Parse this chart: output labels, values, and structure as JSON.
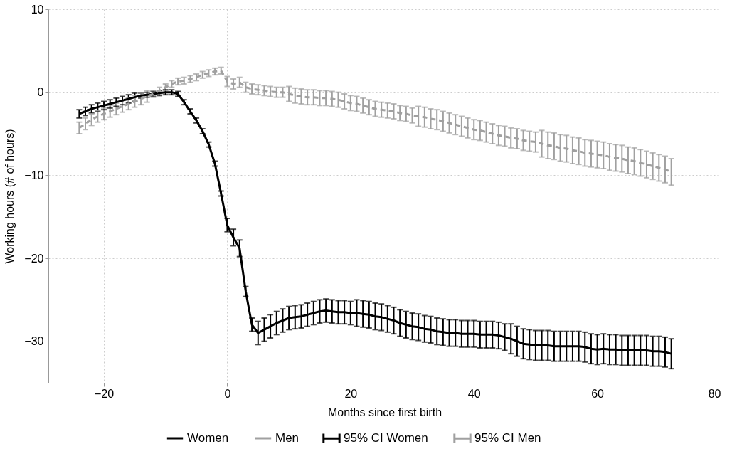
{
  "chart_data": {
    "type": "line",
    "xlabel": "Months since first birth",
    "ylabel": "Working hours (# of hours)",
    "xlim": [
      -29,
      80
    ],
    "xticks": [
      -20,
      0,
      20,
      40,
      60,
      80
    ],
    "ylim": [
      -35,
      10
    ],
    "yticks": [
      -30,
      -20,
      -10,
      0,
      10
    ],
    "grid": true,
    "legend": "bottom",
    "marker": "none",
    "annotations": [
      "95% CI Women",
      "95% CI Men"
    ],
    "x": [
      -24,
      -23,
      -22,
      -21,
      -20,
      -19,
      -18,
      -17,
      -16,
      -15,
      -14,
      -13,
      -12,
      -11,
      -10,
      -9,
      -8,
      -7,
      -6,
      -5,
      -4,
      -3,
      -2,
      -1,
      0,
      1,
      2,
      3,
      4,
      5,
      6,
      7,
      8,
      9,
      10,
      11,
      12,
      13,
      14,
      15,
      16,
      17,
      18,
      19,
      20,
      21,
      22,
      23,
      24,
      25,
      26,
      27,
      28,
      29,
      30,
      31,
      32,
      33,
      34,
      35,
      36,
      37,
      38,
      39,
      40,
      41,
      42,
      43,
      44,
      45,
      46,
      47,
      48,
      49,
      50,
      51,
      52,
      53,
      54,
      55,
      56,
      57,
      58,
      59,
      60,
      61,
      62,
      63,
      64,
      65,
      66,
      67,
      68,
      69,
      70,
      71,
      72
    ],
    "series": [
      {
        "name": "Women",
        "color": "#000000",
        "line_style": "solid",
        "values": [
          -2.6,
          -2.3,
          -2.0,
          -1.8,
          -1.6,
          -1.4,
          -1.2,
          -1.0,
          -0.8,
          -0.6,
          -0.4,
          -0.3,
          -0.2,
          -0.1,
          0.0,
          0.0,
          -0.2,
          -1.2,
          -2.3,
          -3.4,
          -4.7,
          -6.3,
          -8.6,
          -12.2,
          -16.0,
          -17.5,
          -18.8,
          -24.0,
          -28.0,
          -29.0,
          -28.6,
          -28.2,
          -27.8,
          -27.5,
          -27.2,
          -27.1,
          -27.0,
          -26.8,
          -26.6,
          -26.4,
          -26.3,
          -26.4,
          -26.5,
          -26.5,
          -26.6,
          -26.6,
          -26.7,
          -26.8,
          -27.0,
          -27.1,
          -27.3,
          -27.5,
          -27.8,
          -28.0,
          -28.2,
          -28.3,
          -28.5,
          -28.6,
          -28.8,
          -28.9,
          -29.0,
          -29.0,
          -29.1,
          -29.1,
          -29.1,
          -29.2,
          -29.2,
          -29.2,
          -29.3,
          -29.5,
          -29.7,
          -30.0,
          -30.3,
          -30.4,
          -30.5,
          -30.5,
          -30.5,
          -30.6,
          -30.6,
          -30.6,
          -30.6,
          -30.6,
          -30.7,
          -30.9,
          -31.0,
          -30.9,
          -31.0,
          -31.0,
          -31.1,
          -31.1,
          -31.1,
          -31.1,
          -31.1,
          -31.2,
          -31.2,
          -31.3,
          -31.5
        ],
        "errors": [
          0.5,
          0.5,
          0.5,
          0.5,
          0.5,
          0.5,
          0.5,
          0.5,
          0.5,
          0.5,
          0.3,
          0.3,
          0.3,
          0.3,
          0.3,
          0.3,
          0.3,
          0.3,
          0.3,
          0.3,
          0.3,
          0.3,
          0.3,
          0.3,
          0.8,
          1.0,
          1.0,
          0.6,
          0.8,
          1.4,
          1.4,
          1.4,
          1.4,
          1.4,
          1.4,
          1.4,
          1.4,
          1.4,
          1.4,
          1.4,
          1.4,
          1.4,
          1.4,
          1.4,
          1.4,
          1.6,
          1.6,
          1.6,
          1.6,
          1.6,
          1.6,
          1.6,
          1.6,
          1.6,
          1.6,
          1.6,
          1.6,
          1.6,
          1.6,
          1.6,
          1.6,
          1.6,
          1.6,
          1.6,
          1.6,
          1.6,
          1.6,
          1.6,
          1.6,
          1.6,
          1.8,
          1.8,
          1.8,
          1.8,
          1.8,
          1.8,
          1.8,
          1.8,
          1.8,
          1.8,
          1.8,
          1.8,
          1.8,
          1.8,
          1.8,
          1.8,
          1.8,
          1.8,
          1.8,
          1.8,
          1.8,
          1.8,
          1.8,
          1.8,
          1.8,
          1.8,
          1.8
        ]
      },
      {
        "name": "Men",
        "color": "#a0a0a0",
        "line_style": "dashed",
        "values": [
          -4.3,
          -3.8,
          -3.3,
          -2.9,
          -2.6,
          -2.3,
          -2.0,
          -1.7,
          -1.4,
          -1.1,
          -0.8,
          -0.5,
          -0.2,
          0.2,
          0.6,
          1.0,
          1.3,
          1.4,
          1.6,
          1.8,
          2.1,
          2.3,
          2.5,
          2.6,
          1.3,
          1.0,
          1.2,
          0.6,
          0.4,
          0.3,
          0.2,
          0.1,
          0.0,
          0.0,
          -0.2,
          -0.4,
          -0.5,
          -0.6,
          -0.6,
          -0.7,
          -0.7,
          -0.8,
          -0.9,
          -1.1,
          -1.3,
          -1.4,
          -1.6,
          -1.8,
          -2.0,
          -2.1,
          -2.2,
          -2.3,
          -2.5,
          -2.6,
          -2.8,
          -2.9,
          -3.0,
          -3.2,
          -3.3,
          -3.5,
          -3.7,
          -3.9,
          -4.1,
          -4.3,
          -4.5,
          -4.6,
          -4.8,
          -5.0,
          -5.2,
          -5.3,
          -5.5,
          -5.6,
          -5.8,
          -5.9,
          -6.0,
          -6.2,
          -6.4,
          -6.5,
          -6.7,
          -6.8,
          -7.0,
          -7.1,
          -7.3,
          -7.4,
          -7.5,
          -7.6,
          -7.8,
          -7.9,
          -8.0,
          -8.2,
          -8.3,
          -8.5,
          -8.7,
          -8.9,
          -9.1,
          -9.3,
          -9.6
        ],
        "errors": [
          0.7,
          0.7,
          0.7,
          0.7,
          0.7,
          0.7,
          0.7,
          0.7,
          0.7,
          0.7,
          0.7,
          0.7,
          0.4,
          0.4,
          0.4,
          0.4,
          0.4,
          0.4,
          0.4,
          0.4,
          0.4,
          0.4,
          0.4,
          0.4,
          0.6,
          0.6,
          0.6,
          0.6,
          0.6,
          0.6,
          0.6,
          0.6,
          0.6,
          0.6,
          0.9,
          0.9,
          0.9,
          0.9,
          0.9,
          0.9,
          0.9,
          0.9,
          0.9,
          0.9,
          0.9,
          0.9,
          0.9,
          0.9,
          0.9,
          0.9,
          0.9,
          0.9,
          0.9,
          0.9,
          0.9,
          1.2,
          1.2,
          1.2,
          1.2,
          1.2,
          1.2,
          1.2,
          1.2,
          1.2,
          1.2,
          1.2,
          1.2,
          1.2,
          1.2,
          1.2,
          1.2,
          1.2,
          1.2,
          1.2,
          1.2,
          1.6,
          1.6,
          1.6,
          1.6,
          1.6,
          1.6,
          1.6,
          1.6,
          1.6,
          1.6,
          1.6,
          1.6,
          1.6,
          1.6,
          1.6,
          1.6,
          1.6,
          1.6,
          1.6,
          1.6,
          1.6,
          1.6
        ]
      }
    ]
  }
}
